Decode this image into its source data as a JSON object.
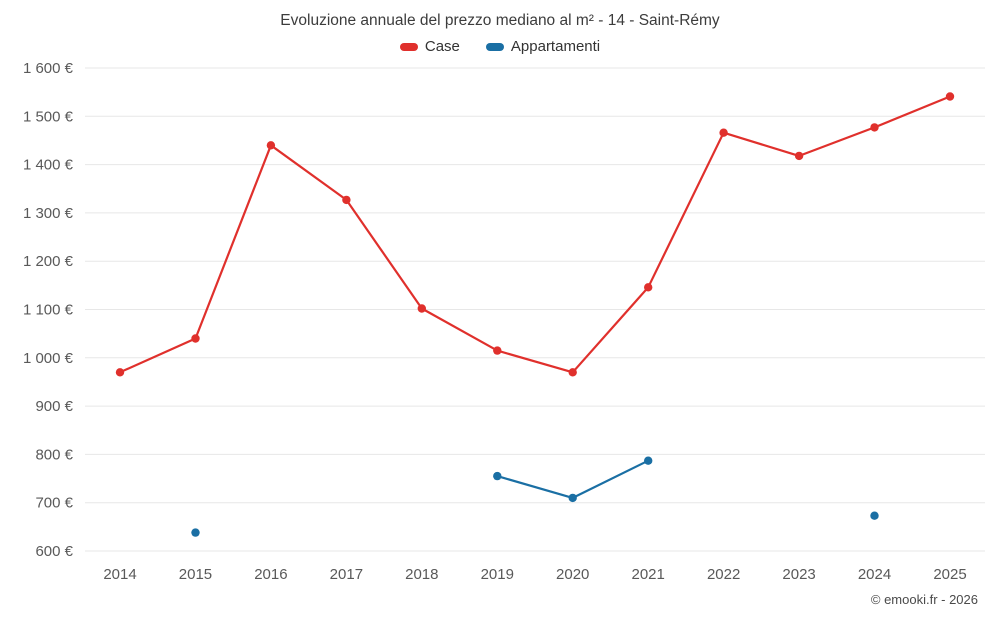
{
  "chart_data": {
    "type": "line",
    "title": "Evoluzione annuale del prezzo mediano al m² - 14 - Saint-Rémy",
    "categories": [
      "2014",
      "2015",
      "2016",
      "2017",
      "2018",
      "2019",
      "2020",
      "2021",
      "2022",
      "2023",
      "2024",
      "2025"
    ],
    "series": [
      {
        "name": "Case",
        "color": "#e0302c",
        "values": [
          970,
          1040,
          1440,
          1327,
          1102,
          1015,
          970,
          1146,
          1466,
          1418,
          1477,
          1541
        ]
      },
      {
        "name": "Appartamenti",
        "color": "#1a6fa4",
        "values": [
          null,
          638,
          null,
          null,
          null,
          755,
          710,
          787,
          null,
          null,
          673,
          null
        ]
      }
    ],
    "ylim": [
      600,
      1600
    ],
    "ytick_step": 100,
    "ytick_labels": [
      "600 €",
      "700 €",
      "800 €",
      "900 €",
      "1 000 €",
      "1 100 €",
      "1 200 €",
      "1 300 €",
      "1 400 €",
      "1 500 €",
      "1 600 €"
    ],
    "grid": true,
    "legend_position": "top",
    "xlabel": "",
    "ylabel": ""
  },
  "footer": {
    "credit": "© emooki.fr - 2026"
  }
}
